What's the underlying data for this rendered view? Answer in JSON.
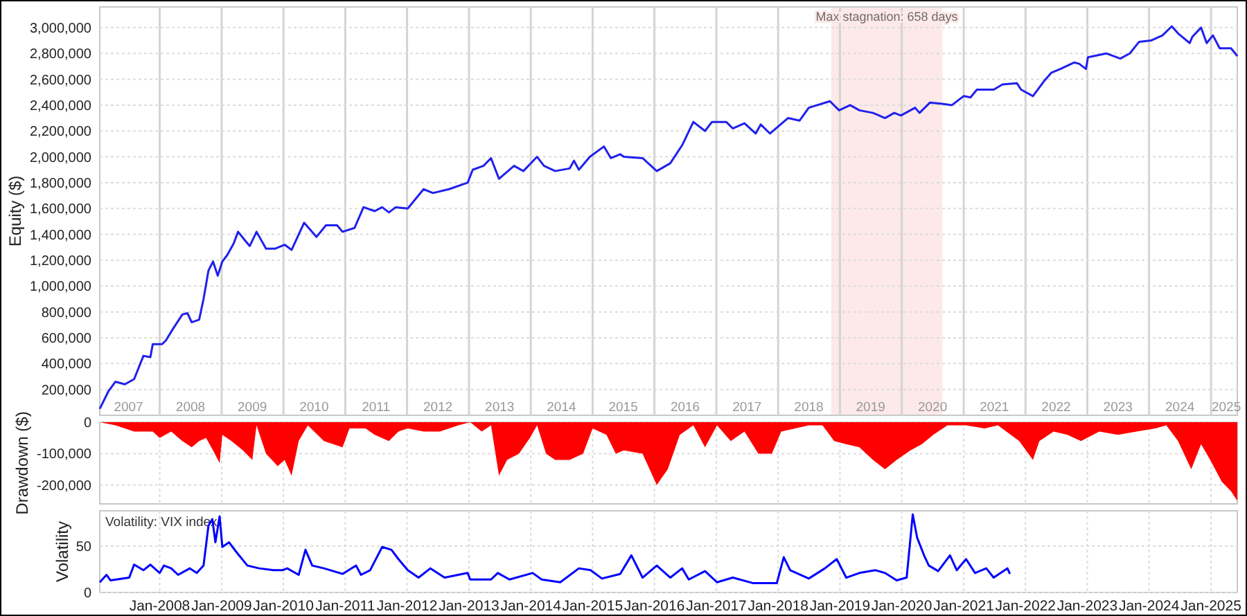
{
  "chart_data": [
    {
      "type": "line",
      "ylabel": "Equity ($)",
      "grid": true,
      "xlim": [
        "2007-01-12",
        "2025-06-05"
      ],
      "xticks": [
        {
          "value": "2008-01-01",
          "label": null
        },
        {
          "value": "2009-01-01",
          "label": null
        },
        {
          "value": "2010-01-01",
          "label": null
        },
        {
          "value": "2011-01-01",
          "label": null
        },
        {
          "value": "2012-01-01",
          "label": null
        },
        {
          "value": "2013-01-01",
          "label": null
        },
        {
          "value": "2014-01-01",
          "label": null
        },
        {
          "value": "2015-01-01",
          "label": null
        },
        {
          "value": "2016-01-01",
          "label": null
        },
        {
          "value": "2017-01-01",
          "label": null
        },
        {
          "value": "2018-01-01",
          "label": null
        },
        {
          "value": "2019-01-01",
          "label": null
        },
        {
          "value": "2020-01-01",
          "label": null
        },
        {
          "value": "2021-01-01",
          "label": null
        },
        {
          "value": "2022-01-01",
          "label": null
        },
        {
          "value": "2023-01-01",
          "label": null
        },
        {
          "value": "2024-01-01",
          "label": null
        },
        {
          "value": "2025-01-01",
          "label": null
        },
        {
          "value": "2007-07-01",
          "label": "2007"
        },
        {
          "value": "2008-07-01",
          "label": "2008"
        },
        {
          "value": "2009-07-01",
          "label": "2009"
        },
        {
          "value": "2010-07-01",
          "label": "2010"
        },
        {
          "value": "2011-07-01",
          "label": "2011"
        },
        {
          "value": "2012-07-01",
          "label": "2012"
        },
        {
          "value": "2013-07-01",
          "label": "2013"
        },
        {
          "value": "2014-07-01",
          "label": "2014"
        },
        {
          "value": "2015-07-01",
          "label": "2015"
        },
        {
          "value": "2016-07-01",
          "label": "2016"
        },
        {
          "value": "2017-07-01",
          "label": "2017"
        },
        {
          "value": "2018-07-01",
          "label": "2018"
        },
        {
          "value": "2019-07-01",
          "label": "2019"
        },
        {
          "value": "2020-07-01",
          "label": "2020"
        },
        {
          "value": "2021-07-01",
          "label": "2021"
        },
        {
          "value": "2022-07-01",
          "label": "2022"
        },
        {
          "value": "2023-07-01",
          "label": "2023"
        },
        {
          "value": "2024-07-01",
          "label": "2024"
        },
        {
          "value": "2025-04-01",
          "label": "2025"
        }
      ],
      "ylim": [
        0,
        3160000
      ],
      "yticks": [
        {
          "value": 200000,
          "label": "200,000"
        },
        {
          "value": 400000,
          "label": "400,000"
        },
        {
          "value": 600000,
          "label": "600,000"
        },
        {
          "value": 800000,
          "label": "800,000"
        },
        {
          "value": 1000000,
          "label": "1,000,000"
        },
        {
          "value": 1200000,
          "label": "1,200,000"
        },
        {
          "value": 1400000,
          "label": "1,400,000"
        },
        {
          "value": 1600000,
          "label": "1,600,000"
        },
        {
          "value": 1800000,
          "label": "1,800,000"
        },
        {
          "value": 2000000,
          "label": "2,000,000"
        },
        {
          "value": 2200000,
          "label": "2,200,000"
        },
        {
          "value": 2400000,
          "label": "2,400,000"
        },
        {
          "value": 2600000,
          "label": "2,600,000"
        },
        {
          "value": 2800000,
          "label": "2,800,000"
        },
        {
          "value": 3000000,
          "label": "3,000,000"
        }
      ],
      "bands": [
        {
          "axis": "x",
          "from": "2018-11-10",
          "to": "2020-08-28",
          "label": "Max stagnation: 658 days",
          "color": "#fde9e9"
        }
      ],
      "series": [
        {
          "color": "#2020ee",
          "x": [
            "2007-01-12",
            "2007-03-06",
            "2007-04-15",
            "2007-06-09",
            "2007-08-03",
            "2007-09-27",
            "2007-11-07",
            "2007-11-21",
            "2008-01-15",
            "2008-02-07",
            "2008-03-20",
            "2008-05-14",
            "2008-06-13",
            "2008-07-08",
            "2008-08-21",
            "2008-09-16",
            "2008-10-15",
            "2008-11-11",
            "2008-12-09",
            "2009-01-05",
            "2009-02-03",
            "2009-03-13",
            "2009-04-08",
            "2009-05-21",
            "2009-06-16",
            "2009-07-26",
            "2009-09-20",
            "2009-11-14",
            "2010-01-08",
            "2010-02-18",
            "2010-05-03",
            "2010-07-15",
            "2010-09-09",
            "2010-11-14",
            "2010-12-16",
            "2011-02-25",
            "2011-04-19",
            "2011-06-24",
            "2011-08-07",
            "2011-09-16",
            "2011-10-26",
            "2012-01-05",
            "2012-04-08",
            "2012-06-02",
            "2012-09-06",
            "2012-12-24",
            "2013-01-23",
            "2013-03-27",
            "2013-05-11",
            "2013-06-27",
            "2013-09-24",
            "2013-11-18",
            "2014-02-07",
            "2014-03-20",
            "2014-05-25",
            "2014-08-18",
            "2014-09-13",
            "2014-10-12",
            "2014-12-16",
            "2015-03-09",
            "2015-04-19",
            "2015-06-13",
            "2015-07-05",
            "2015-10-23",
            "2016-01-15",
            "2016-04-04",
            "2016-06-13",
            "2016-08-18",
            "2016-10-26",
            "2016-12-06",
            "2017-02-28",
            "2017-04-08",
            "2017-06-16",
            "2017-08-21",
            "2017-09-20",
            "2017-11-14",
            "2018-02-28",
            "2018-05-07",
            "2018-07-01",
            "2018-11-03",
            "2018-12-27",
            "2019-03-02",
            "2019-04-26",
            "2019-07-15",
            "2019-09-24",
            "2019-11-18",
            "2019-12-27",
            "2020-03-20",
            "2020-04-15",
            "2020-06-16",
            "2020-08-28",
            "2020-10-23",
            "2021-01-01",
            "2021-02-10",
            "2021-03-20",
            "2021-06-27",
            "2021-08-18",
            "2021-11-11",
            "2021-12-06",
            "2022-02-14",
            "2022-04-23",
            "2022-06-02",
            "2022-07-26",
            "2022-10-15",
            "2022-11-14",
            "2022-12-24",
            "2023-01-05",
            "2023-04-23",
            "2023-07-15",
            "2023-09-09",
            "2023-11-03",
            "2024-01-12",
            "2024-03-20",
            "2024-05-14",
            "2024-06-24",
            "2024-08-28",
            "2024-09-13",
            "2024-11-03",
            "2024-12-06",
            "2025-01-12",
            "2025-02-21",
            "2025-04-29",
            "2025-06-05"
          ],
          "values": [
            50000,
            190000,
            260000,
            240000,
            280000,
            460000,
            450000,
            550000,
            550000,
            580000,
            670000,
            780000,
            790000,
            720000,
            740000,
            900000,
            1120000,
            1190000,
            1080000,
            1190000,
            1240000,
            1330000,
            1420000,
            1350000,
            1310000,
            1420000,
            1290000,
            1290000,
            1320000,
            1280000,
            1490000,
            1380000,
            1470000,
            1470000,
            1420000,
            1450000,
            1610000,
            1580000,
            1610000,
            1570000,
            1610000,
            1600000,
            1750000,
            1720000,
            1750000,
            1800000,
            1900000,
            1930000,
            1990000,
            1830000,
            1930000,
            1890000,
            2000000,
            1930000,
            1890000,
            1910000,
            1970000,
            1900000,
            2000000,
            2080000,
            1990000,
            2020000,
            2000000,
            1990000,
            1890000,
            1950000,
            2090000,
            2270000,
            2200000,
            2270000,
            2270000,
            2220000,
            2260000,
            2180000,
            2250000,
            2180000,
            2300000,
            2280000,
            2380000,
            2430000,
            2360000,
            2400000,
            2360000,
            2340000,
            2300000,
            2340000,
            2320000,
            2380000,
            2340000,
            2420000,
            2410000,
            2400000,
            2470000,
            2460000,
            2520000,
            2520000,
            2560000,
            2570000,
            2520000,
            2470000,
            2590000,
            2650000,
            2680000,
            2730000,
            2720000,
            2680000,
            2770000,
            2800000,
            2760000,
            2800000,
            2890000,
            2900000,
            2940000,
            3010000,
            2950000,
            2880000,
            2930000,
            3000000,
            2880000,
            2940000,
            2840000,
            2840000,
            2780000
          ]
        }
      ]
    },
    {
      "type": "area",
      "ylabel": "Drawdown ($)",
      "grid": true,
      "tick_labels": "y",
      "xlim": [
        "2007-01-12",
        "2025-06-05"
      ],
      "xticks": [
        {
          "value": "2008-01-01",
          "label": null
        },
        {
          "value": "2009-01-01",
          "label": null
        },
        {
          "value": "2010-01-01",
          "label": null
        },
        {
          "value": "2011-01-01",
          "label": null
        },
        {
          "value": "2012-01-01",
          "label": null
        },
        {
          "value": "2013-01-01",
          "label": null
        },
        {
          "value": "2014-01-01",
          "label": null
        },
        {
          "value": "2015-01-01",
          "label": null
        },
        {
          "value": "2016-01-01",
          "label": null
        },
        {
          "value": "2017-01-01",
          "label": null
        },
        {
          "value": "2018-01-01",
          "label": null
        },
        {
          "value": "2019-01-01",
          "label": null
        },
        {
          "value": "2020-01-01",
          "label": null
        },
        {
          "value": "2021-01-01",
          "label": null
        },
        {
          "value": "2022-01-01",
          "label": null
        },
        {
          "value": "2023-01-01",
          "label": null
        },
        {
          "value": "2024-01-01",
          "label": null
        },
        {
          "value": "2025-01-01",
          "label": null
        }
      ],
      "ylim": [
        -260000,
        0
      ],
      "yticks": [
        {
          "value": 0,
          "label": "0"
        },
        {
          "value": -100000,
          "label": "-100,000"
        },
        {
          "value": -200000,
          "label": "-200,000"
        }
      ],
      "series": [
        {
          "color": "#ff0000",
          "x": [
            "2007-01-12",
            "2007-04-15",
            "2007-08-03",
            "2007-11-21",
            "2008-01-01",
            "2008-03-09",
            "2008-05-14",
            "2008-07-08",
            "2008-08-21",
            "2008-10-01",
            "2008-11-11",
            "2008-12-20",
            "2009-01-05",
            "2009-02-28",
            "2009-05-07",
            "2009-07-01",
            "2009-07-26",
            "2009-09-20",
            "2009-11-28",
            "2010-01-08",
            "2010-02-18",
            "2010-04-01",
            "2010-05-25",
            "2010-08-28",
            "2010-12-16",
            "2011-01-26",
            "2011-05-01",
            "2011-06-24",
            "2011-09-16",
            "2011-11-11",
            "2012-01-05",
            "2012-04-08",
            "2012-07-12",
            "2012-10-30",
            "2013-01-08",
            "2013-03-17",
            "2013-05-11",
            "2013-06-27",
            "2013-08-14",
            "2013-10-23",
            "2013-12-27",
            "2014-02-07",
            "2014-04-01",
            "2014-05-25",
            "2014-08-18",
            "2014-11-06",
            "2015-01-01",
            "2015-03-24",
            "2015-05-18",
            "2015-07-05",
            "2015-10-23",
            "2016-01-15",
            "2016-03-20",
            "2016-05-30",
            "2016-08-18",
            "2016-10-26",
            "2017-01-05",
            "2017-03-27",
            "2017-06-16",
            "2017-09-06",
            "2017-11-25",
            "2018-01-19",
            "2018-04-12",
            "2018-07-01",
            "2018-09-20",
            "2018-11-28",
            "2019-02-07",
            "2019-04-26",
            "2019-07-15",
            "2019-09-24",
            "2019-12-02",
            "2020-02-21",
            "2020-04-29",
            "2020-07-05",
            "2020-09-27",
            "2021-01-15",
            "2021-05-04",
            "2021-07-22",
            "2021-11-25",
            "2022-02-14",
            "2022-03-24",
            "2022-06-16",
            "2022-09-06",
            "2022-11-25",
            "2023-03-13",
            "2023-07-01",
            "2023-10-19",
            "2024-02-07",
            "2024-04-12",
            "2024-06-20",
            "2024-09-06",
            "2024-11-03",
            "2024-12-27",
            "2025-03-06",
            "2025-04-29",
            "2025-06-05"
          ],
          "values": [
            0,
            -10000,
            -30000,
            -30000,
            -50000,
            -30000,
            -60000,
            -80000,
            -60000,
            -50000,
            -90000,
            -130000,
            -40000,
            -60000,
            -90000,
            -120000,
            -10000,
            -100000,
            -140000,
            -120000,
            -170000,
            -60000,
            -10000,
            -60000,
            -80000,
            -20000,
            -20000,
            -40000,
            -60000,
            -30000,
            -20000,
            -30000,
            -30000,
            -10000,
            0,
            -30000,
            -10000,
            -170000,
            -120000,
            -100000,
            -50000,
            -10000,
            -100000,
            -120000,
            -120000,
            -100000,
            -20000,
            -40000,
            -100000,
            -90000,
            -100000,
            -200000,
            -150000,
            -40000,
            -10000,
            -80000,
            -10000,
            -60000,
            -30000,
            -100000,
            -100000,
            -30000,
            -20000,
            -10000,
            -10000,
            -60000,
            -70000,
            -80000,
            -120000,
            -150000,
            -120000,
            -90000,
            -70000,
            -40000,
            -10000,
            -10000,
            -20000,
            -10000,
            -60000,
            -120000,
            -60000,
            -30000,
            -40000,
            -60000,
            -30000,
            -40000,
            -30000,
            -20000,
            -10000,
            -60000,
            -150000,
            -70000,
            -120000,
            -190000,
            -220000,
            -250000
          ]
        }
      ]
    },
    {
      "type": "line",
      "ylabel": "Volatility",
      "grid": true,
      "annotations": [
        "Volatility: VIX index"
      ],
      "xlim": [
        "2007-01-12",
        "2025-06-05"
      ],
      "xticks": [
        {
          "value": "2008-01-01",
          "label": "Jan-2008"
        },
        {
          "value": "2009-01-01",
          "label": "Jan-2009"
        },
        {
          "value": "2010-01-01",
          "label": "Jan-2010"
        },
        {
          "value": "2011-01-01",
          "label": "Jan-2011"
        },
        {
          "value": "2012-01-01",
          "label": "Jan-2012"
        },
        {
          "value": "2013-01-01",
          "label": "Jan-2013"
        },
        {
          "value": "2014-01-01",
          "label": "Jan-2014"
        },
        {
          "value": "2015-01-01",
          "label": "Jan-2015"
        },
        {
          "value": "2016-01-01",
          "label": "Jan-2016"
        },
        {
          "value": "2017-01-01",
          "label": "Jan-2017"
        },
        {
          "value": "2018-01-01",
          "label": "Jan-2018"
        },
        {
          "value": "2019-01-01",
          "label": "Jan-2019"
        },
        {
          "value": "2020-01-01",
          "label": "Jan-2020"
        },
        {
          "value": "2021-01-01",
          "label": "Jan-2021"
        },
        {
          "value": "2022-01-01",
          "label": "Jan-2022"
        },
        {
          "value": "2023-01-01",
          "label": "Jan-2023"
        },
        {
          "value": "2024-01-01",
          "label": "Jan-2024"
        },
        {
          "value": "2025-01-01",
          "label": "Jan-2025"
        }
      ],
      "ylim": [
        0,
        88
      ],
      "yticks": [
        0,
        50
      ],
      "series": [
        {
          "color": "#0000ff",
          "x": [
            "2007-01-12",
            "2007-02-21",
            "2007-03-17",
            "2007-07-05",
            "2007-08-03",
            "2007-09-27",
            "2007-11-07",
            "2008-01-01",
            "2008-01-26",
            "2008-03-09",
            "2008-04-19",
            "2008-06-27",
            "2008-08-07",
            "2008-09-16",
            "2008-10-15",
            "2008-11-07",
            "2008-11-25",
            "2008-12-20",
            "2009-01-05",
            "2009-02-14",
            "2009-03-27",
            "2009-06-02",
            "2009-08-10",
            "2009-11-03",
            "2009-12-27",
            "2010-01-23",
            "2010-04-01",
            "2010-05-11",
            "2010-06-20",
            "2010-08-28",
            "2010-12-16",
            "2011-03-06",
            "2011-04-04",
            "2011-05-28",
            "2011-08-07",
            "2011-10-01",
            "2011-11-11",
            "2012-01-05",
            "2012-03-09",
            "2012-05-18",
            "2012-08-10",
            "2012-12-24",
            "2013-01-08",
            "2013-05-11",
            "2013-06-20",
            "2013-08-28",
            "2014-01-12",
            "2014-03-06",
            "2014-06-24",
            "2014-10-12",
            "2014-12-20",
            "2015-02-25",
            "2015-06-13",
            "2015-08-18",
            "2015-10-23",
            "2016-01-15",
            "2016-04-04",
            "2016-06-13",
            "2016-07-22",
            "2016-10-26",
            "2017-01-05",
            "2017-04-08",
            "2017-08-07",
            "2017-12-24",
            "2018-02-03",
            "2018-03-13",
            "2018-07-01",
            "2018-10-04",
            "2018-12-13",
            "2019-02-07",
            "2019-04-26",
            "2019-07-30",
            "2019-09-24",
            "2019-12-02",
            "2020-01-30",
            "2020-03-06",
            "2020-04-01",
            "2020-05-14",
            "2020-06-09",
            "2020-08-03",
            "2020-10-12",
            "2020-11-21",
            "2021-01-15",
            "2021-03-09",
            "2021-05-14",
            "2021-06-27",
            "2021-09-16",
            "2021-10-01"
          ],
          "values": [
            11,
            19,
            13,
            16,
            30,
            24,
            30,
            21,
            29,
            26,
            19,
            26,
            21,
            29,
            72,
            79,
            54,
            82,
            49,
            54,
            44,
            29,
            26,
            24,
            24,
            26,
            19,
            46,
            29,
            26,
            20,
            29,
            19,
            24,
            49,
            46,
            36,
            24,
            16,
            26,
            16,
            21,
            14,
            14,
            21,
            14,
            21,
            14,
            11,
            26,
            24,
            15,
            20,
            40,
            16,
            29,
            16,
            26,
            14,
            23,
            11,
            16,
            10,
            10,
            38,
            24,
            15,
            26,
            36,
            16,
            21,
            24,
            21,
            13,
            16,
            84,
            59,
            39,
            29,
            23,
            40,
            24,
            36,
            21,
            26,
            16,
            26,
            20
          ]
        }
      ]
    }
  ]
}
